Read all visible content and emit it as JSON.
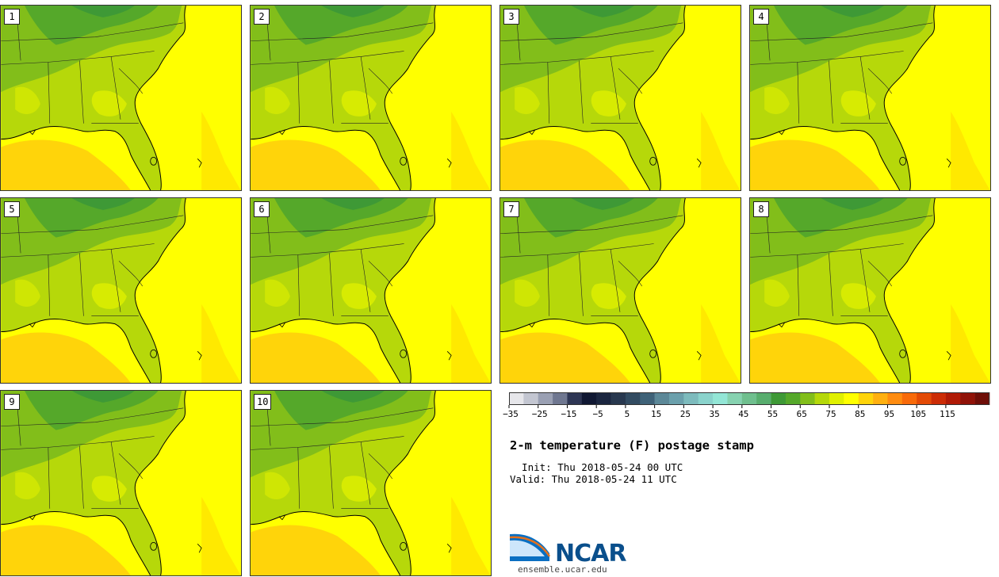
{
  "stamps": [
    {
      "label": "1"
    },
    {
      "label": "2"
    },
    {
      "label": "3"
    },
    {
      "label": "4"
    },
    {
      "label": "5"
    },
    {
      "label": "6"
    },
    {
      "label": "7"
    },
    {
      "label": "8"
    },
    {
      "label": "9"
    },
    {
      "label": "10"
    }
  ],
  "colorbar": {
    "colors": [
      "#e6e6ea",
      "#c3c6d1",
      "#9aa0b3",
      "#6f7790",
      "#2e3654",
      "#101833",
      "#1b2640",
      "#28384f",
      "#324b61",
      "#3f6278",
      "#5c8898",
      "#6ba0ac",
      "#7dbbbd",
      "#8ad3cc",
      "#93e6d6",
      "#86d2b0",
      "#6fbf8e",
      "#58ad6e",
      "#3e9936",
      "#55a82a",
      "#82be1a",
      "#b5d80a",
      "#e0f000",
      "#ffff00",
      "#ffd40a",
      "#ffb010",
      "#ff8c10",
      "#f86a0a",
      "#e34a06",
      "#cc2c06",
      "#b01a06",
      "#901208",
      "#6e0e08"
    ],
    "tick_labels": [
      "−35",
      "−25",
      "−15",
      "−5",
      "5",
      "15",
      "25",
      "35",
      "45",
      "55",
      "65",
      "75",
      "85",
      "95",
      "105",
      "115"
    ],
    "min": -35,
    "max": 125,
    "step": 5
  },
  "title": "2-m temperature (F) postage stamp",
  "init": "  Init: Thu 2018-05-24 00 UTC",
  "valid": "Valid: Thu 2018-05-24 11 UTC",
  "logo": {
    "name": "NCAR",
    "url": "ensemble.ucar.edu"
  }
}
